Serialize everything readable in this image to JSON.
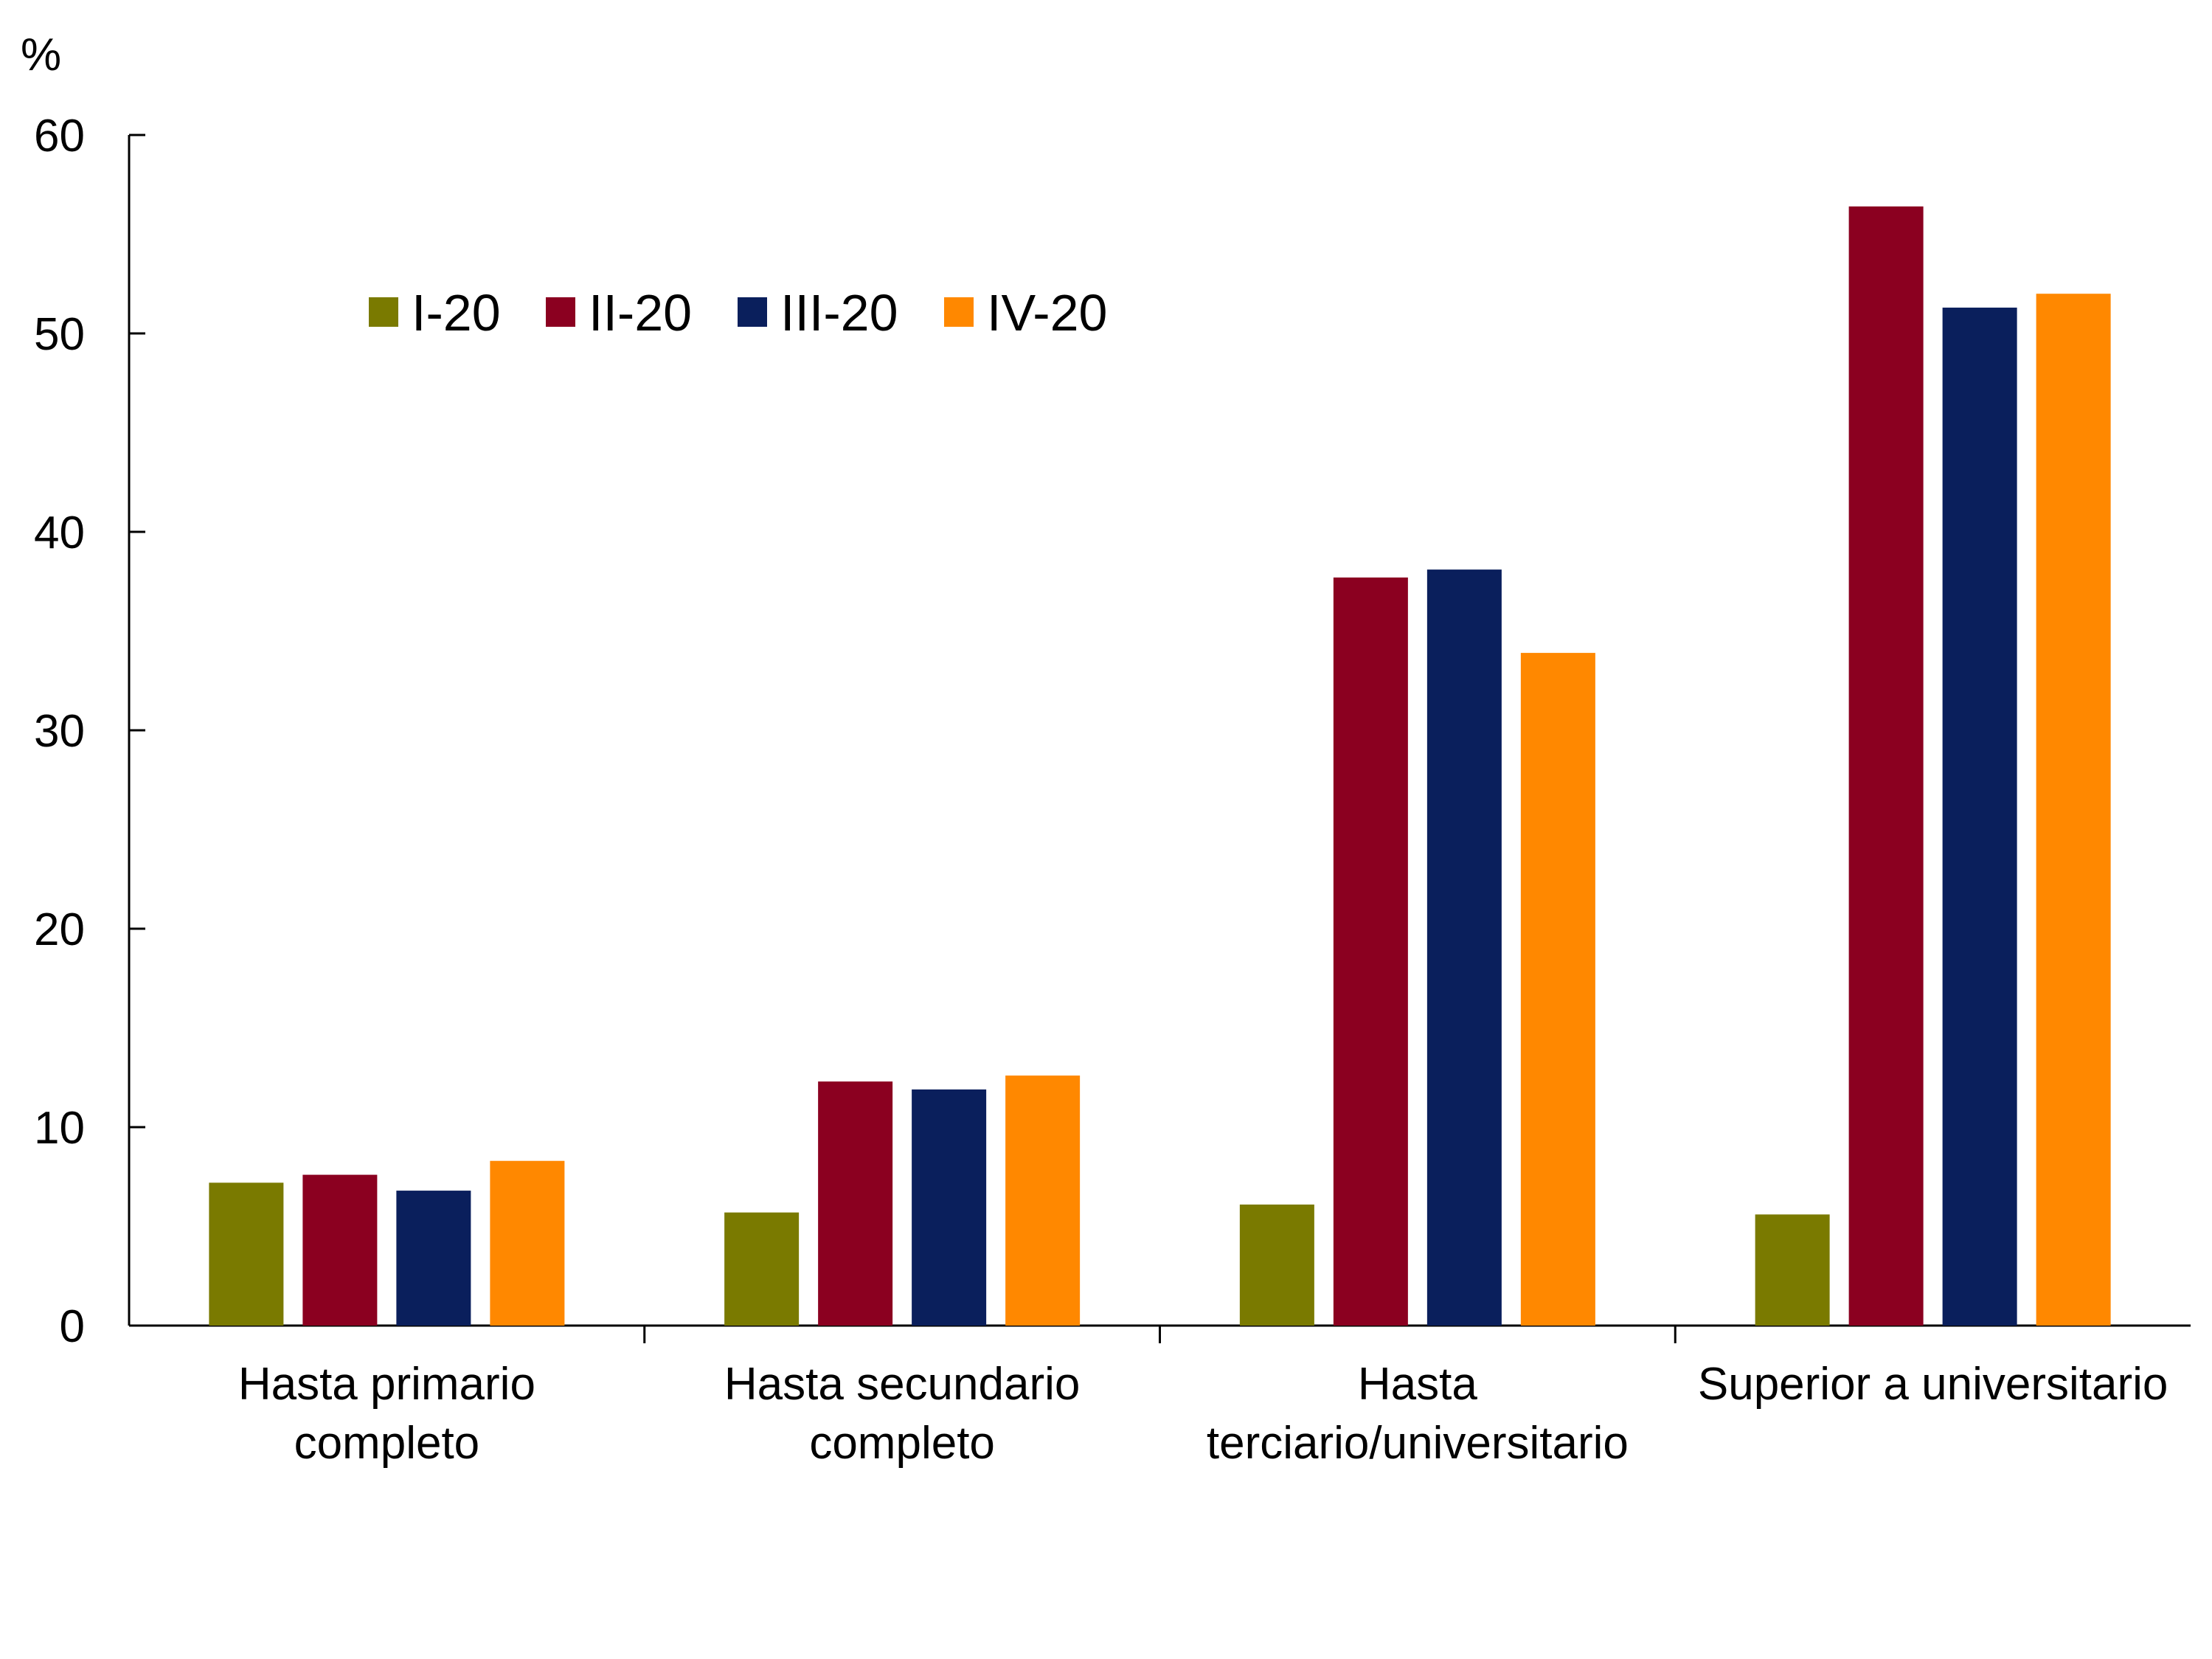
{
  "chart_data": {
    "type": "bar",
    "title": "",
    "ylabel": "%",
    "xlabel": "",
    "ylim": [
      0,
      60
    ],
    "yticks": [
      0,
      10,
      20,
      30,
      40,
      50,
      60
    ],
    "grid": false,
    "legend_position": "top-left",
    "categories": [
      [
        "Hasta primario",
        "completo"
      ],
      [
        "Hasta secundario",
        "completo"
      ],
      [
        "Hasta",
        "terciario/universitario"
      ],
      [
        "Superior a universitario"
      ]
    ],
    "series": [
      {
        "name": "I-20",
        "color": "#7a7a00",
        "values": [
          7.2,
          5.7,
          6.1,
          5.6
        ]
      },
      {
        "name": "II-20",
        "color": "#8b0020",
        "values": [
          7.6,
          12.3,
          37.7,
          56.4
        ]
      },
      {
        "name": "III-20",
        "color": "#0a1f5c",
        "values": [
          6.8,
          11.9,
          38.1,
          51.3
        ]
      },
      {
        "name": "IV-20",
        "color": "#ff8800",
        "values": [
          8.3,
          12.6,
          33.9,
          52.0
        ]
      }
    ]
  }
}
